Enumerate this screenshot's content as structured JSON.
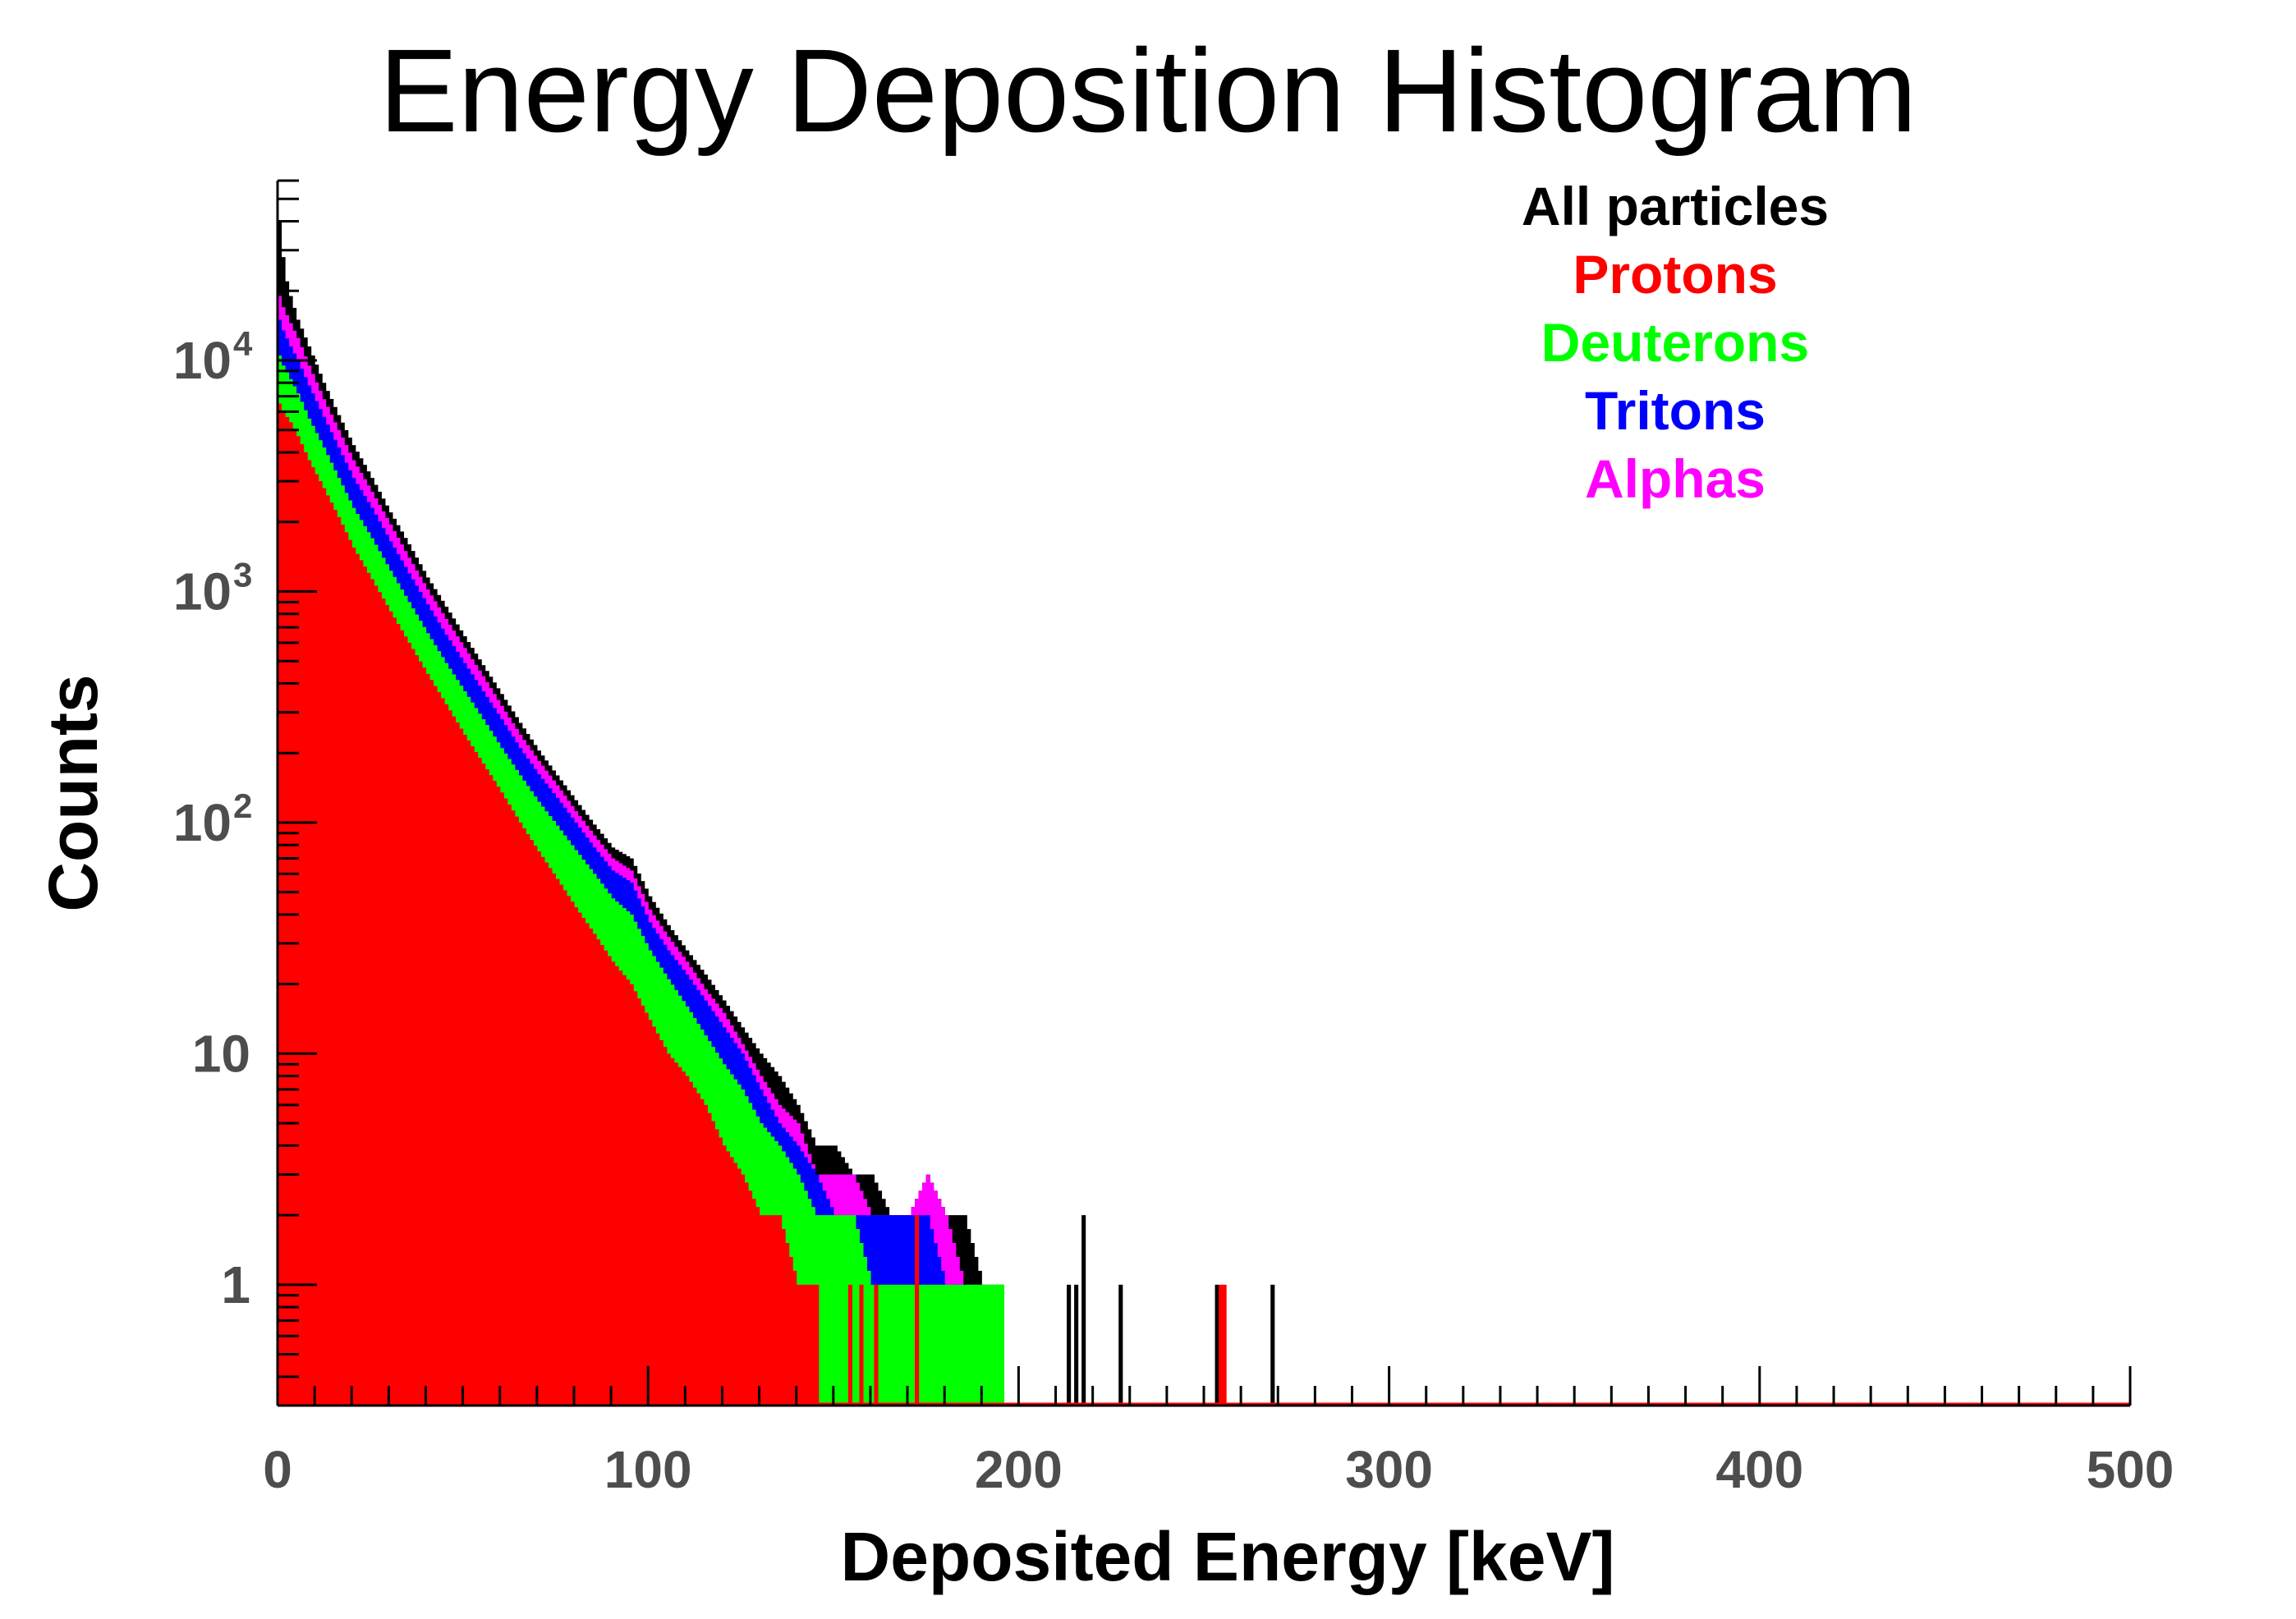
{
  "chart_data": {
    "type": "bar",
    "title": "Energy Deposition Histogram",
    "xlabel": "Deposited Energy [keV]",
    "ylabel": "Counts",
    "xlim": [
      0,
      500
    ],
    "ylim": [
      0.3,
      60000
    ],
    "yscale": "log",
    "grid": false,
    "legend_position": "top-right",
    "x_ticks": [
      {
        "value": 0,
        "label": "0"
      },
      {
        "value": 100,
        "label": "100"
      },
      {
        "value": 200,
        "label": "200"
      },
      {
        "value": 300,
        "label": "300"
      },
      {
        "value": 400,
        "label": "400"
      },
      {
        "value": 500,
        "label": "500"
      }
    ],
    "y_ticks": [
      {
        "value": 1,
        "base": "1",
        "exp": ""
      },
      {
        "value": 10,
        "base": "10",
        "exp": ""
      },
      {
        "value": 100,
        "base": "10",
        "exp": "2"
      },
      {
        "value": 1000,
        "base": "10",
        "exp": "3"
      },
      {
        "value": 10000,
        "base": "10",
        "exp": "4"
      }
    ],
    "bin_width": 1,
    "series": [
      {
        "name": "All particles",
        "color": "#000000",
        "points": [
          [
            0,
            40000
          ],
          [
            1,
            28000
          ],
          [
            2,
            22000
          ],
          [
            3,
            19000
          ],
          [
            5,
            15000
          ],
          [
            8,
            11500
          ],
          [
            12,
            8000
          ],
          [
            16,
            5800
          ],
          [
            20,
            4300
          ],
          [
            25,
            3100
          ],
          [
            30,
            2200
          ],
          [
            35,
            1600
          ],
          [
            40,
            1150
          ],
          [
            45,
            860
          ],
          [
            50,
            640
          ],
          [
            55,
            480
          ],
          [
            60,
            360
          ],
          [
            65,
            270
          ],
          [
            70,
            205
          ],
          [
            75,
            160
          ],
          [
            80,
            125
          ],
          [
            85,
            98
          ],
          [
            90,
            78
          ],
          [
            95,
            70
          ],
          [
            100,
            48
          ],
          [
            105,
            36
          ],
          [
            110,
            28
          ],
          [
            115,
            22
          ],
          [
            120,
            17
          ],
          [
            125,
            13
          ],
          [
            130,
            10
          ],
          [
            135,
            8
          ],
          [
            140,
            6
          ],
          [
            145,
            4
          ],
          [
            150,
            4
          ],
          [
            155,
            3
          ],
          [
            160,
            3
          ],
          [
            165,
            2
          ],
          [
            170,
            2
          ],
          [
            175,
            3
          ],
          [
            180,
            2
          ],
          [
            185,
            2
          ],
          [
            190,
            1
          ],
          [
            195,
            1
          ]
        ],
        "isolated": [
          [
            213,
            1
          ],
          [
            215,
            1
          ],
          [
            217,
            2
          ],
          [
            227,
            1
          ],
          [
            253,
            1
          ],
          [
            268,
            1
          ]
        ]
      },
      {
        "name": "Alphas",
        "color": "#ff00ff",
        "points": [
          [
            0,
            19000
          ],
          [
            1,
            17000
          ],
          [
            3,
            14500
          ],
          [
            5,
            12500
          ],
          [
            8,
            9500
          ],
          [
            12,
            6800
          ],
          [
            16,
            5000
          ],
          [
            20,
            3700
          ],
          [
            25,
            2700
          ],
          [
            30,
            1950
          ],
          [
            35,
            1400
          ],
          [
            40,
            1020
          ],
          [
            45,
            760
          ],
          [
            50,
            570
          ],
          [
            55,
            430
          ],
          [
            60,
            320
          ],
          [
            65,
            240
          ],
          [
            70,
            185
          ],
          [
            75,
            145
          ],
          [
            80,
            112
          ],
          [
            85,
            88
          ],
          [
            90,
            70
          ],
          [
            95,
            62
          ],
          [
            100,
            42
          ],
          [
            105,
            32
          ],
          [
            110,
            25
          ],
          [
            115,
            19
          ],
          [
            120,
            15
          ],
          [
            125,
            11
          ],
          [
            130,
            8
          ],
          [
            135,
            6
          ],
          [
            140,
            5
          ],
          [
            145,
            3
          ],
          [
            150,
            3
          ],
          [
            155,
            3
          ],
          [
            160,
            2
          ],
          [
            165,
            2
          ],
          [
            170,
            2
          ],
          [
            175,
            3
          ],
          [
            180,
            2
          ],
          [
            185,
            1
          ],
          [
            190,
            1
          ]
        ],
        "isolated": []
      },
      {
        "name": "Tritons",
        "color": "#0000ff",
        "points": [
          [
            0,
            15000
          ],
          [
            1,
            13500
          ],
          [
            3,
            11500
          ],
          [
            5,
            10000
          ],
          [
            8,
            7800
          ],
          [
            12,
            5700
          ],
          [
            16,
            4200
          ],
          [
            20,
            3100
          ],
          [
            25,
            2300
          ],
          [
            30,
            1650
          ],
          [
            35,
            1200
          ],
          [
            40,
            880
          ],
          [
            45,
            650
          ],
          [
            50,
            490
          ],
          [
            55,
            370
          ],
          [
            60,
            280
          ],
          [
            65,
            210
          ],
          [
            70,
            162
          ],
          [
            75,
            128
          ],
          [
            80,
            100
          ],
          [
            85,
            78
          ],
          [
            90,
            62
          ],
          [
            95,
            55
          ],
          [
            100,
            37
          ],
          [
            105,
            28
          ],
          [
            110,
            22
          ],
          [
            115,
            17
          ],
          [
            120,
            13
          ],
          [
            125,
            10
          ],
          [
            130,
            7
          ],
          [
            135,
            5
          ],
          [
            140,
            4
          ],
          [
            145,
            3
          ],
          [
            150,
            2
          ],
          [
            155,
            2
          ],
          [
            160,
            2
          ],
          [
            165,
            2
          ],
          [
            170,
            2
          ],
          [
            175,
            2
          ],
          [
            180,
            1
          ],
          [
            185,
            1
          ]
        ],
        "isolated": []
      },
      {
        "name": "Deuterons",
        "color": "#00ff00",
        "points": [
          [
            0,
            10500
          ],
          [
            1,
            9500
          ],
          [
            3,
            8300
          ],
          [
            5,
            7200
          ],
          [
            8,
            5600
          ],
          [
            12,
            4200
          ],
          [
            16,
            3100
          ],
          [
            20,
            2300
          ],
          [
            25,
            1700
          ],
          [
            30,
            1230
          ],
          [
            35,
            900
          ],
          [
            40,
            660
          ],
          [
            45,
            490
          ],
          [
            50,
            370
          ],
          [
            55,
            280
          ],
          [
            60,
            210
          ],
          [
            65,
            160
          ],
          [
            70,
            123
          ],
          [
            75,
            97
          ],
          [
            80,
            76
          ],
          [
            85,
            60
          ],
          [
            90,
            47
          ],
          [
            95,
            40
          ],
          [
            100,
            28
          ],
          [
            105,
            21
          ],
          [
            110,
            16
          ],
          [
            115,
            12
          ],
          [
            120,
            9
          ],
          [
            125,
            7
          ],
          [
            130,
            5
          ],
          [
            135,
            4
          ],
          [
            140,
            3
          ],
          [
            145,
            2
          ],
          [
            150,
            2
          ],
          [
            155,
            2
          ],
          [
            160,
            1
          ],
          [
            165,
            1
          ],
          [
            170,
            1
          ],
          [
            175,
            1
          ],
          [
            180,
            1
          ],
          [
            185,
            1
          ],
          [
            190,
            1
          ],
          [
            195,
            1
          ]
        ],
        "isolated": []
      },
      {
        "name": "Protons",
        "color": "#ff0000",
        "points": [
          [
            0,
            6500
          ],
          [
            1,
            6000
          ],
          [
            3,
            5400
          ],
          [
            5,
            4700
          ],
          [
            8,
            3700
          ],
          [
            12,
            2800
          ],
          [
            16,
            2100
          ],
          [
            20,
            1550
          ],
          [
            25,
            1130
          ],
          [
            30,
            820
          ],
          [
            35,
            600
          ],
          [
            40,
            440
          ],
          [
            45,
            325
          ],
          [
            50,
            240
          ],
          [
            55,
            180
          ],
          [
            60,
            135
          ],
          [
            65,
            100
          ],
          [
            70,
            75
          ],
          [
            75,
            57
          ],
          [
            80,
            43
          ],
          [
            85,
            33
          ],
          [
            90,
            25
          ],
          [
            95,
            20
          ],
          [
            100,
            14
          ],
          [
            105,
            10
          ],
          [
            110,
            8
          ],
          [
            115,
            6
          ],
          [
            120,
            4
          ],
          [
            125,
            3
          ],
          [
            130,
            2
          ],
          [
            135,
            2
          ],
          [
            140,
            1
          ],
          [
            145,
            1
          ]
        ],
        "isolated": [
          [
            154,
            1
          ],
          [
            157,
            1
          ],
          [
            161,
            1
          ],
          [
            172,
            2
          ],
          [
            254,
            1
          ],
          [
            255,
            1
          ]
        ]
      }
    ]
  }
}
